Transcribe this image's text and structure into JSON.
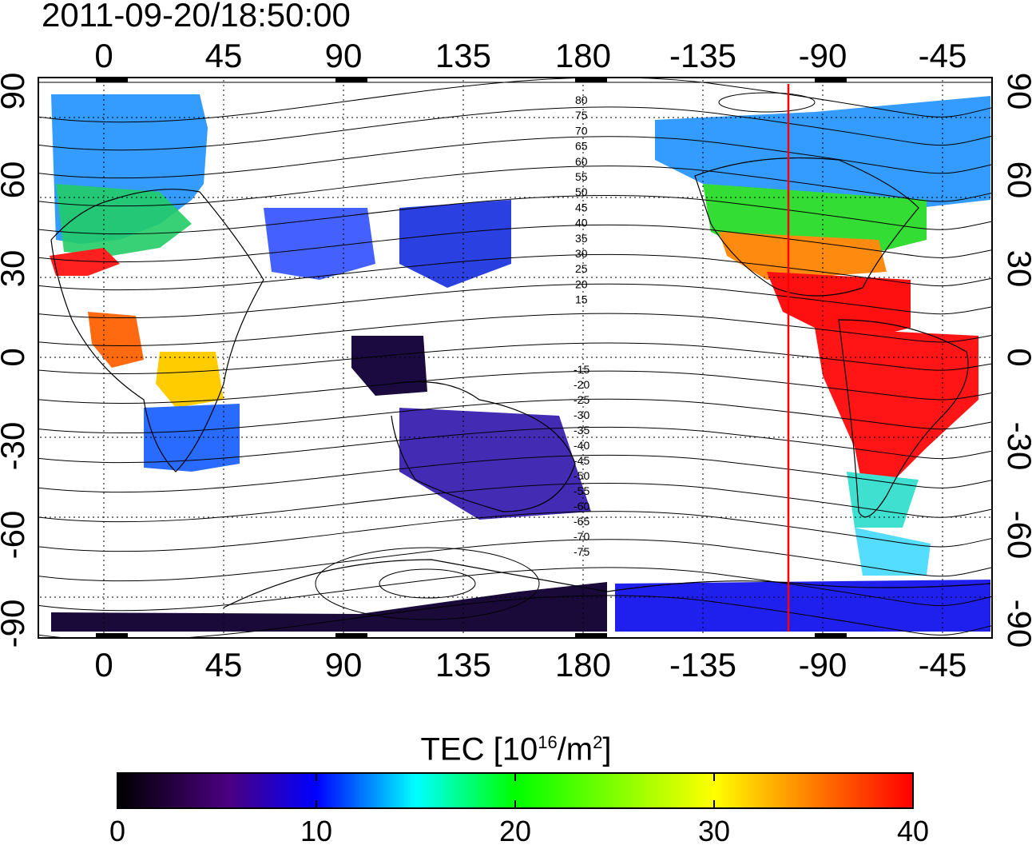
{
  "timestamp": "2011-09-20/18:50:00",
  "map": {
    "top_lon_ticks": [
      "0",
      "45",
      "90",
      "135",
      "180",
      "-135",
      "-90",
      "-45"
    ],
    "bottom_lon_ticks": [
      "0",
      "45",
      "90",
      "135",
      "180",
      "-135",
      "-90",
      "-45"
    ],
    "left_lat_ticks": [
      "90",
      "60",
      "30",
      "0",
      "-30",
      "-60",
      "-90"
    ],
    "right_lat_ticks": [
      "90",
      "60",
      "30",
      "0",
      "-30",
      "-60",
      "-90"
    ],
    "contour_labels": [
      "80",
      "75",
      "70",
      "65",
      "60",
      "55",
      "50",
      "45",
      "40",
      "35",
      "30",
      "25",
      "20",
      "15",
      "-15",
      "-20",
      "-25",
      "-30",
      "-35",
      "-40",
      "-45",
      "-50",
      "-55",
      "-60",
      "-65",
      "-70",
      "-75"
    ],
    "terminator_color": "#ff0000"
  },
  "colorbar": {
    "title_main": "TEC  [10",
    "title_exp1": "16",
    "title_mid": "/m",
    "title_exp2": "2",
    "title_end": "]",
    "ticks": [
      "0",
      "10",
      "20",
      "30",
      "40"
    ],
    "min": 0,
    "max": 40,
    "stops": [
      "#000000",
      "#4b0080",
      "#0000ff",
      "#00ffff",
      "#00ff00",
      "#ffff00",
      "#ff8000",
      "#ff0000"
    ]
  }
}
